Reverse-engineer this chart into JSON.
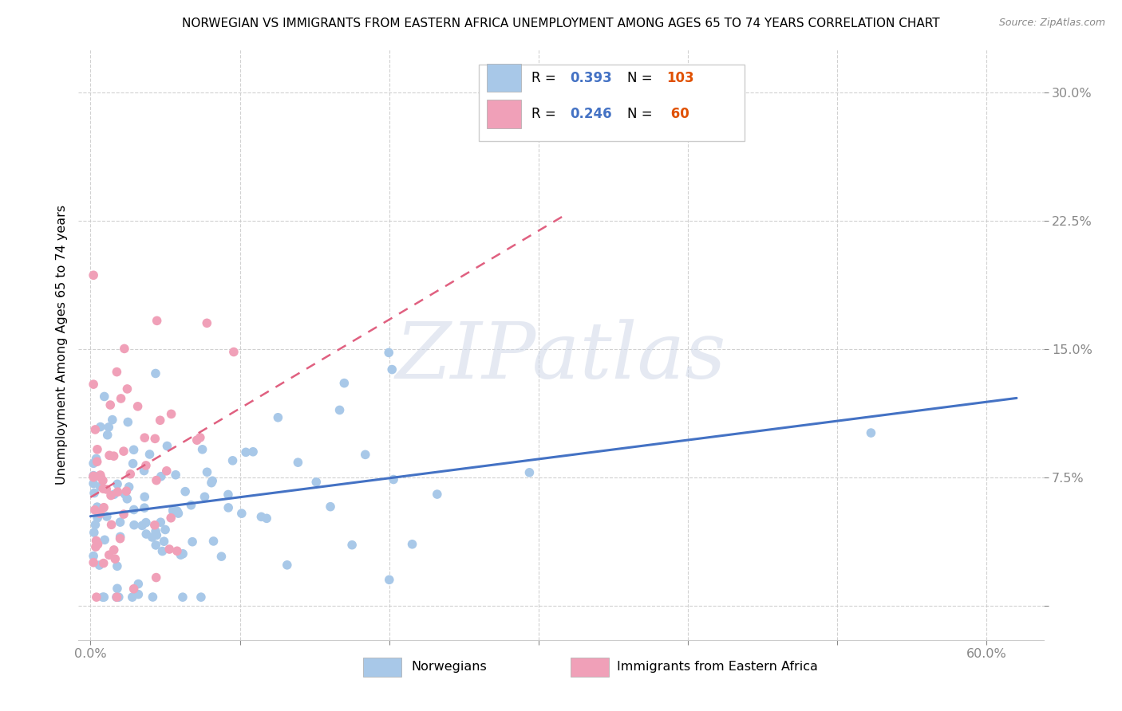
{
  "title": "NORWEGIAN VS IMMIGRANTS FROM EASTERN AFRICA UNEMPLOYMENT AMONG AGES 65 TO 74 YEARS CORRELATION CHART",
  "source": "Source: ZipAtlas.com",
  "ylabel": "Unemployment Among Ages 65 to 74 years",
  "norwegian_color": "#a8c8e8",
  "immigrant_color": "#f0a0b8",
  "norwegian_line_color": "#4472c4",
  "immigrant_line_color": "#e06080",
  "R_norwegian": 0.393,
  "N_norwegian": 103,
  "R_immigrant": 0.246,
  "N_immigrant": 60,
  "watermark": "ZIPatlas",
  "nor_R_label": "R = 0.393",
  "nor_N_label": "N = 103",
  "imm_R_label": "R = 0.246",
  "imm_N_label": "N =  60",
  "x_tick_labels": [
    "0.0%",
    "",
    "",
    "",
    "",
    "",
    "60.0%"
  ],
  "y_tick_labels": [
    "",
    "7.5%",
    "15.0%",
    "22.5%",
    "30.0%"
  ],
  "legend_bottom_nor": "Norwegians",
  "legend_bottom_imm": "Immigrants from Eastern Africa"
}
